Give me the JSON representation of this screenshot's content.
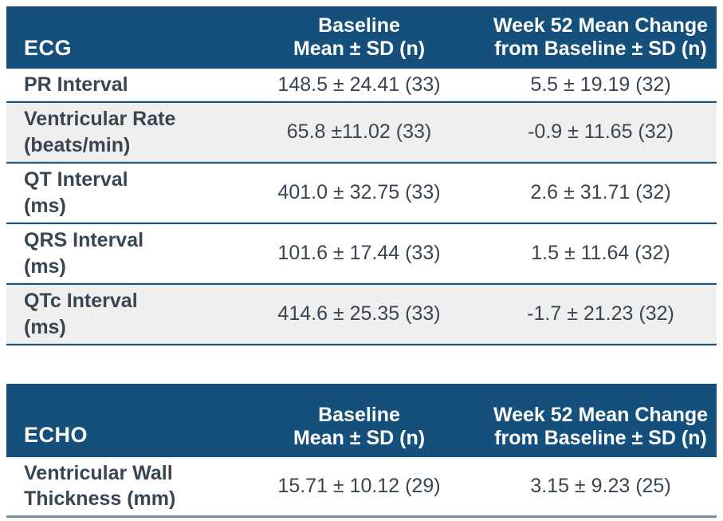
{
  "colors": {
    "header_bg": "#14507B",
    "header_text": "#FFFFFF",
    "body_text": "#3A4552",
    "shaded_row_bg": "#EFEFEF",
    "divider_dark": "#1E537D",
    "divider_light": "#C7DCEA",
    "echo_bottom_border": "#73909F"
  },
  "tables": [
    {
      "title": "ECG",
      "col_baseline": [
        "Baseline",
        "Mean ± SD (n)"
      ],
      "col_week52": [
        "Week 52 Mean Change",
        "from Baseline ± SD (n)"
      ],
      "rows": [
        {
          "label_lines": [
            "PR Interval"
          ],
          "baseline": "148.5 ± 24.41 (33)",
          "week52": "5.5 ± 19.19 (32)",
          "shaded": false
        },
        {
          "label_lines": [
            "Ventricular Rate",
            "(beats/min)"
          ],
          "baseline": "65.8 ±11.02 (33)",
          "week52": "-0.9 ± 11.65 (32)",
          "shaded": true
        },
        {
          "label_lines": [
            "QT Interval",
            "(ms)"
          ],
          "baseline": "401.0 ± 32.75 (33)",
          "week52": "2.6 ± 31.71 (32)",
          "shaded": false
        },
        {
          "label_lines": [
            "QRS Interval",
            "(ms)"
          ],
          "baseline": "101.6 ± 17.44 (33)",
          "week52": "1.5 ± 11.64 (32)",
          "shaded": false
        },
        {
          "label_lines": [
            "QTc Interval",
            "(ms)"
          ],
          "baseline": "414.6 ± 25.35 (33)",
          "week52": "-1.7 ± 21.23 (32)",
          "shaded": true
        }
      ]
    },
    {
      "title": "ECHO",
      "col_baseline": [
        "Baseline",
        "Mean ± SD (n)"
      ],
      "col_week52": [
        "Week 52 Mean Change",
        "from Baseline ± SD (n)"
      ],
      "rows": [
        {
          "label_lines": [
            "Ventricular Wall",
            "Thickness (mm)"
          ],
          "baseline": "15.71 ± 10.12 (29)",
          "week52": "3.15 ± 9.23 (25)",
          "shaded": false
        }
      ]
    }
  ]
}
